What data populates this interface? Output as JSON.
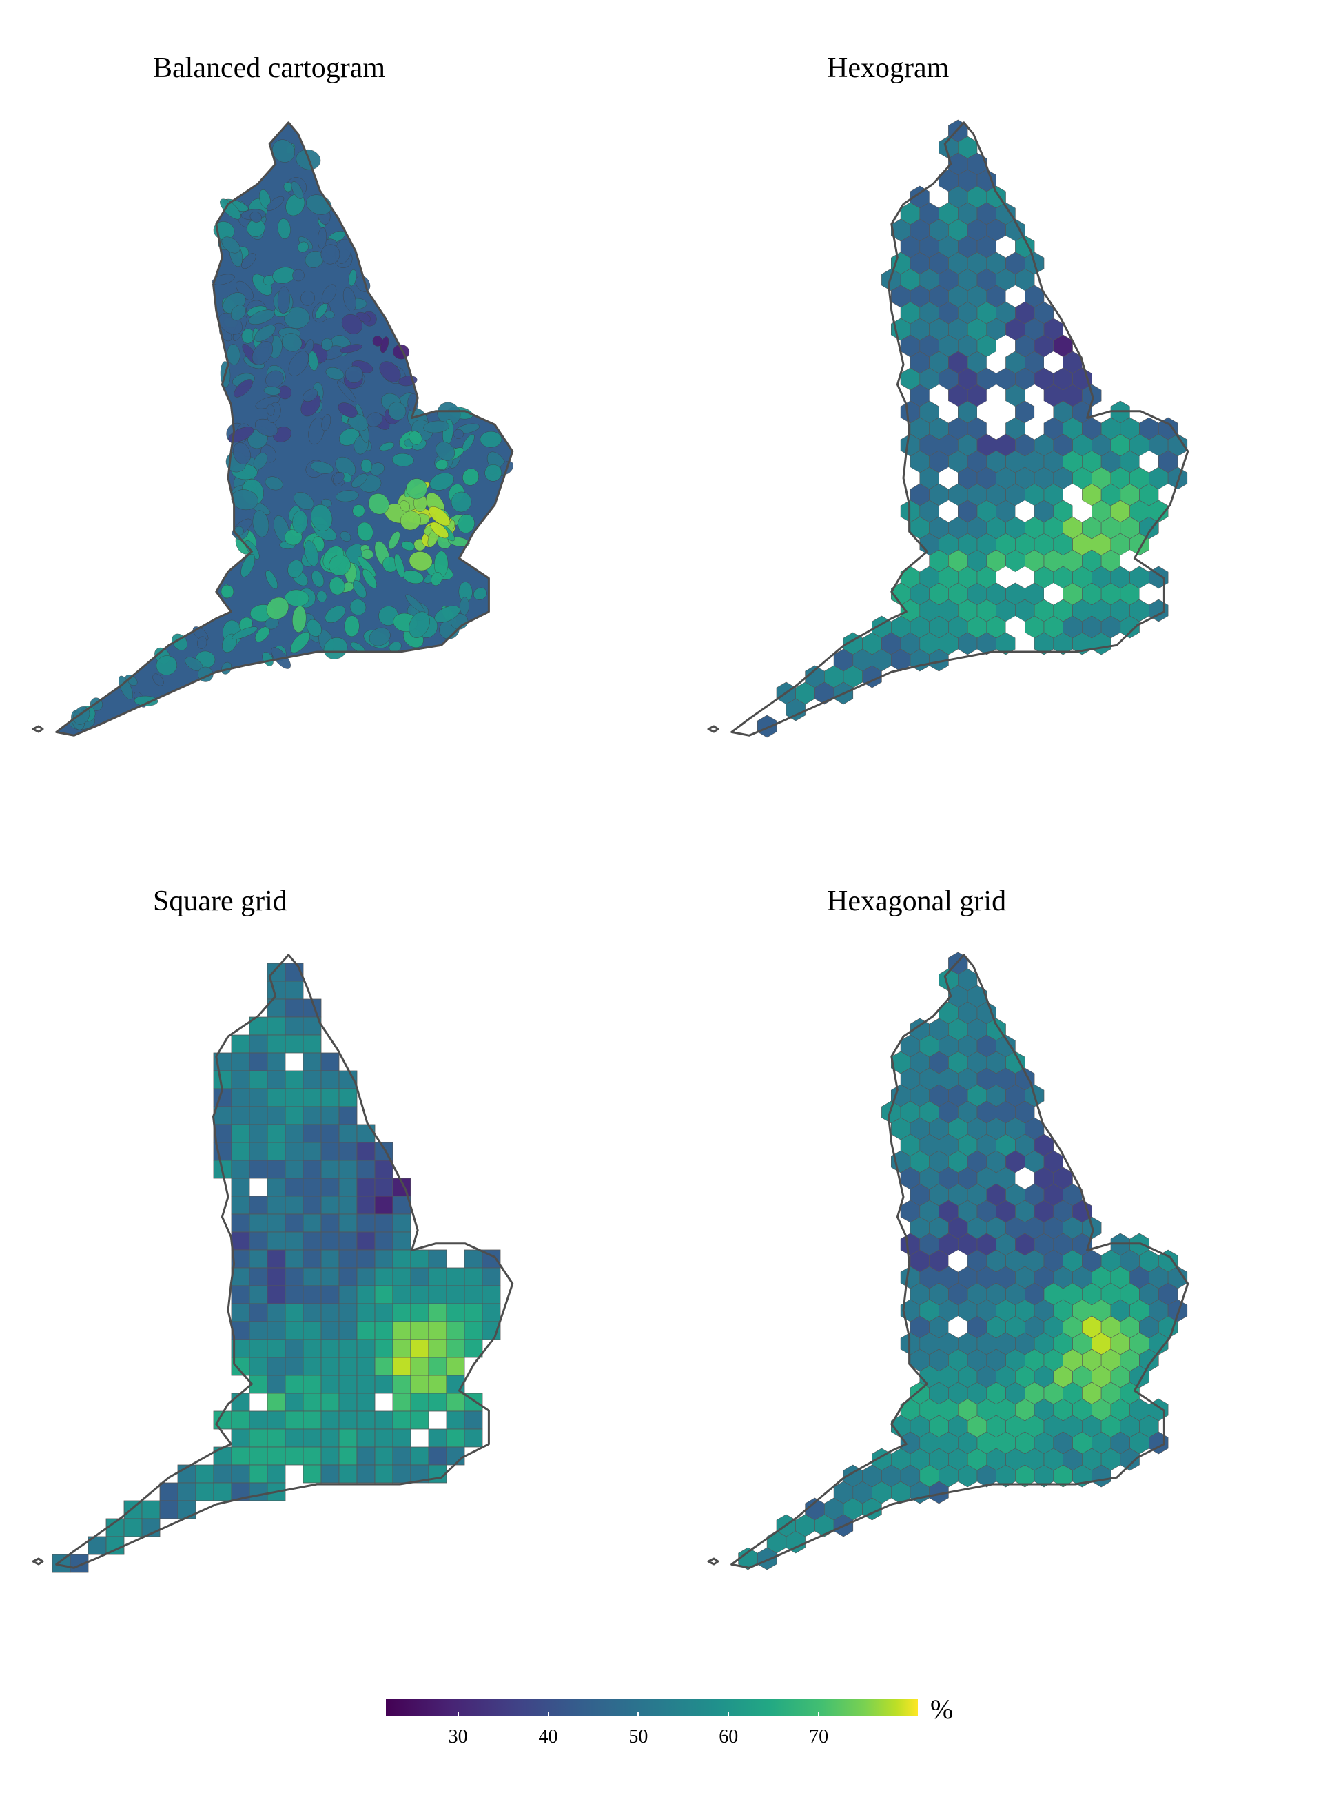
{
  "panels": [
    {
      "title": "Balanced cartogram",
      "type": "cartogram"
    },
    {
      "title": "Hexogram",
      "type": "hex"
    },
    {
      "title": "Square grid",
      "type": "square"
    },
    {
      "title": "Hexagonal grid",
      "type": "hexgrid"
    }
  ],
  "legend": {
    "unit": "%",
    "min": 22,
    "max": 81,
    "ticks": [
      30,
      40,
      50,
      60,
      70
    ],
    "colormap": "viridis"
  }
}
